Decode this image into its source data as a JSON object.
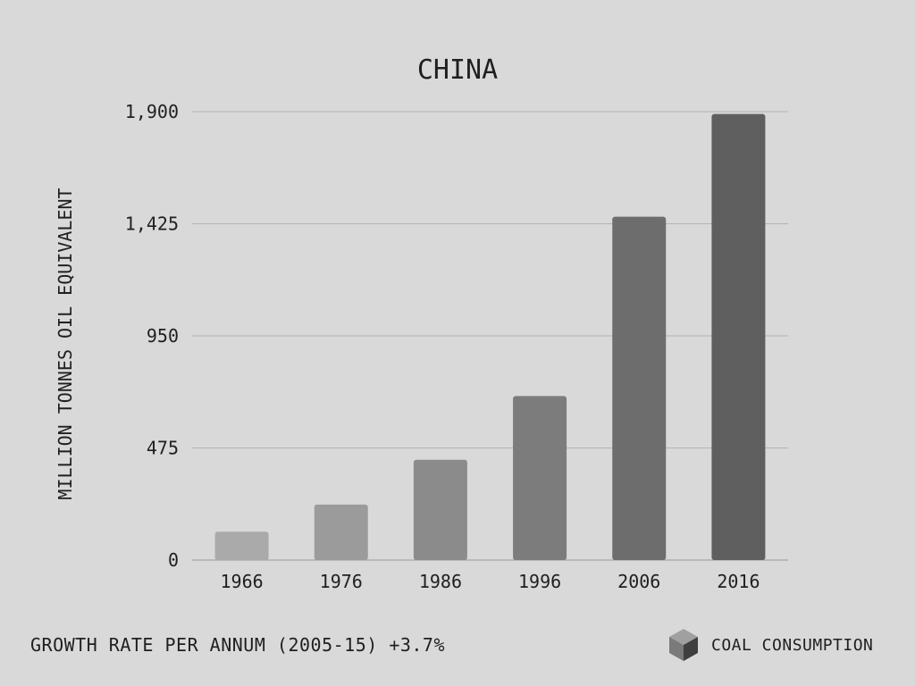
{
  "chart_data": {
    "type": "bar",
    "title": "CHINA",
    "ylabel": "MILLION TONNES OIL EQUIVALENT",
    "xlabel": "",
    "categories": [
      "1966",
      "1976",
      "1986",
      "1996",
      "2006",
      "2016"
    ],
    "values": [
      120,
      235,
      425,
      695,
      1455,
      1890
    ],
    "ylim": [
      0,
      1900
    ],
    "yticks": [
      0,
      475,
      950,
      1425,
      1900
    ],
    "ytick_labels": [
      "0",
      "475",
      "950",
      "1,425",
      "1,900"
    ],
    "grid": true,
    "bar_colors": [
      "#aaaaaa",
      "#9b9b9b",
      "#8b8b8b",
      "#7c7c7c",
      "#6d6d6d",
      "#5f5f5f"
    ],
    "gridline_color": "#b3b3b3",
    "text_color": "#1f1f1f"
  },
  "footer": {
    "growth_rate": "GROWTH RATE PER ANNUM (2005-15) +3.7%",
    "legend_label": "COAL CONSUMPTION",
    "legend_icon": "cube-icon"
  }
}
